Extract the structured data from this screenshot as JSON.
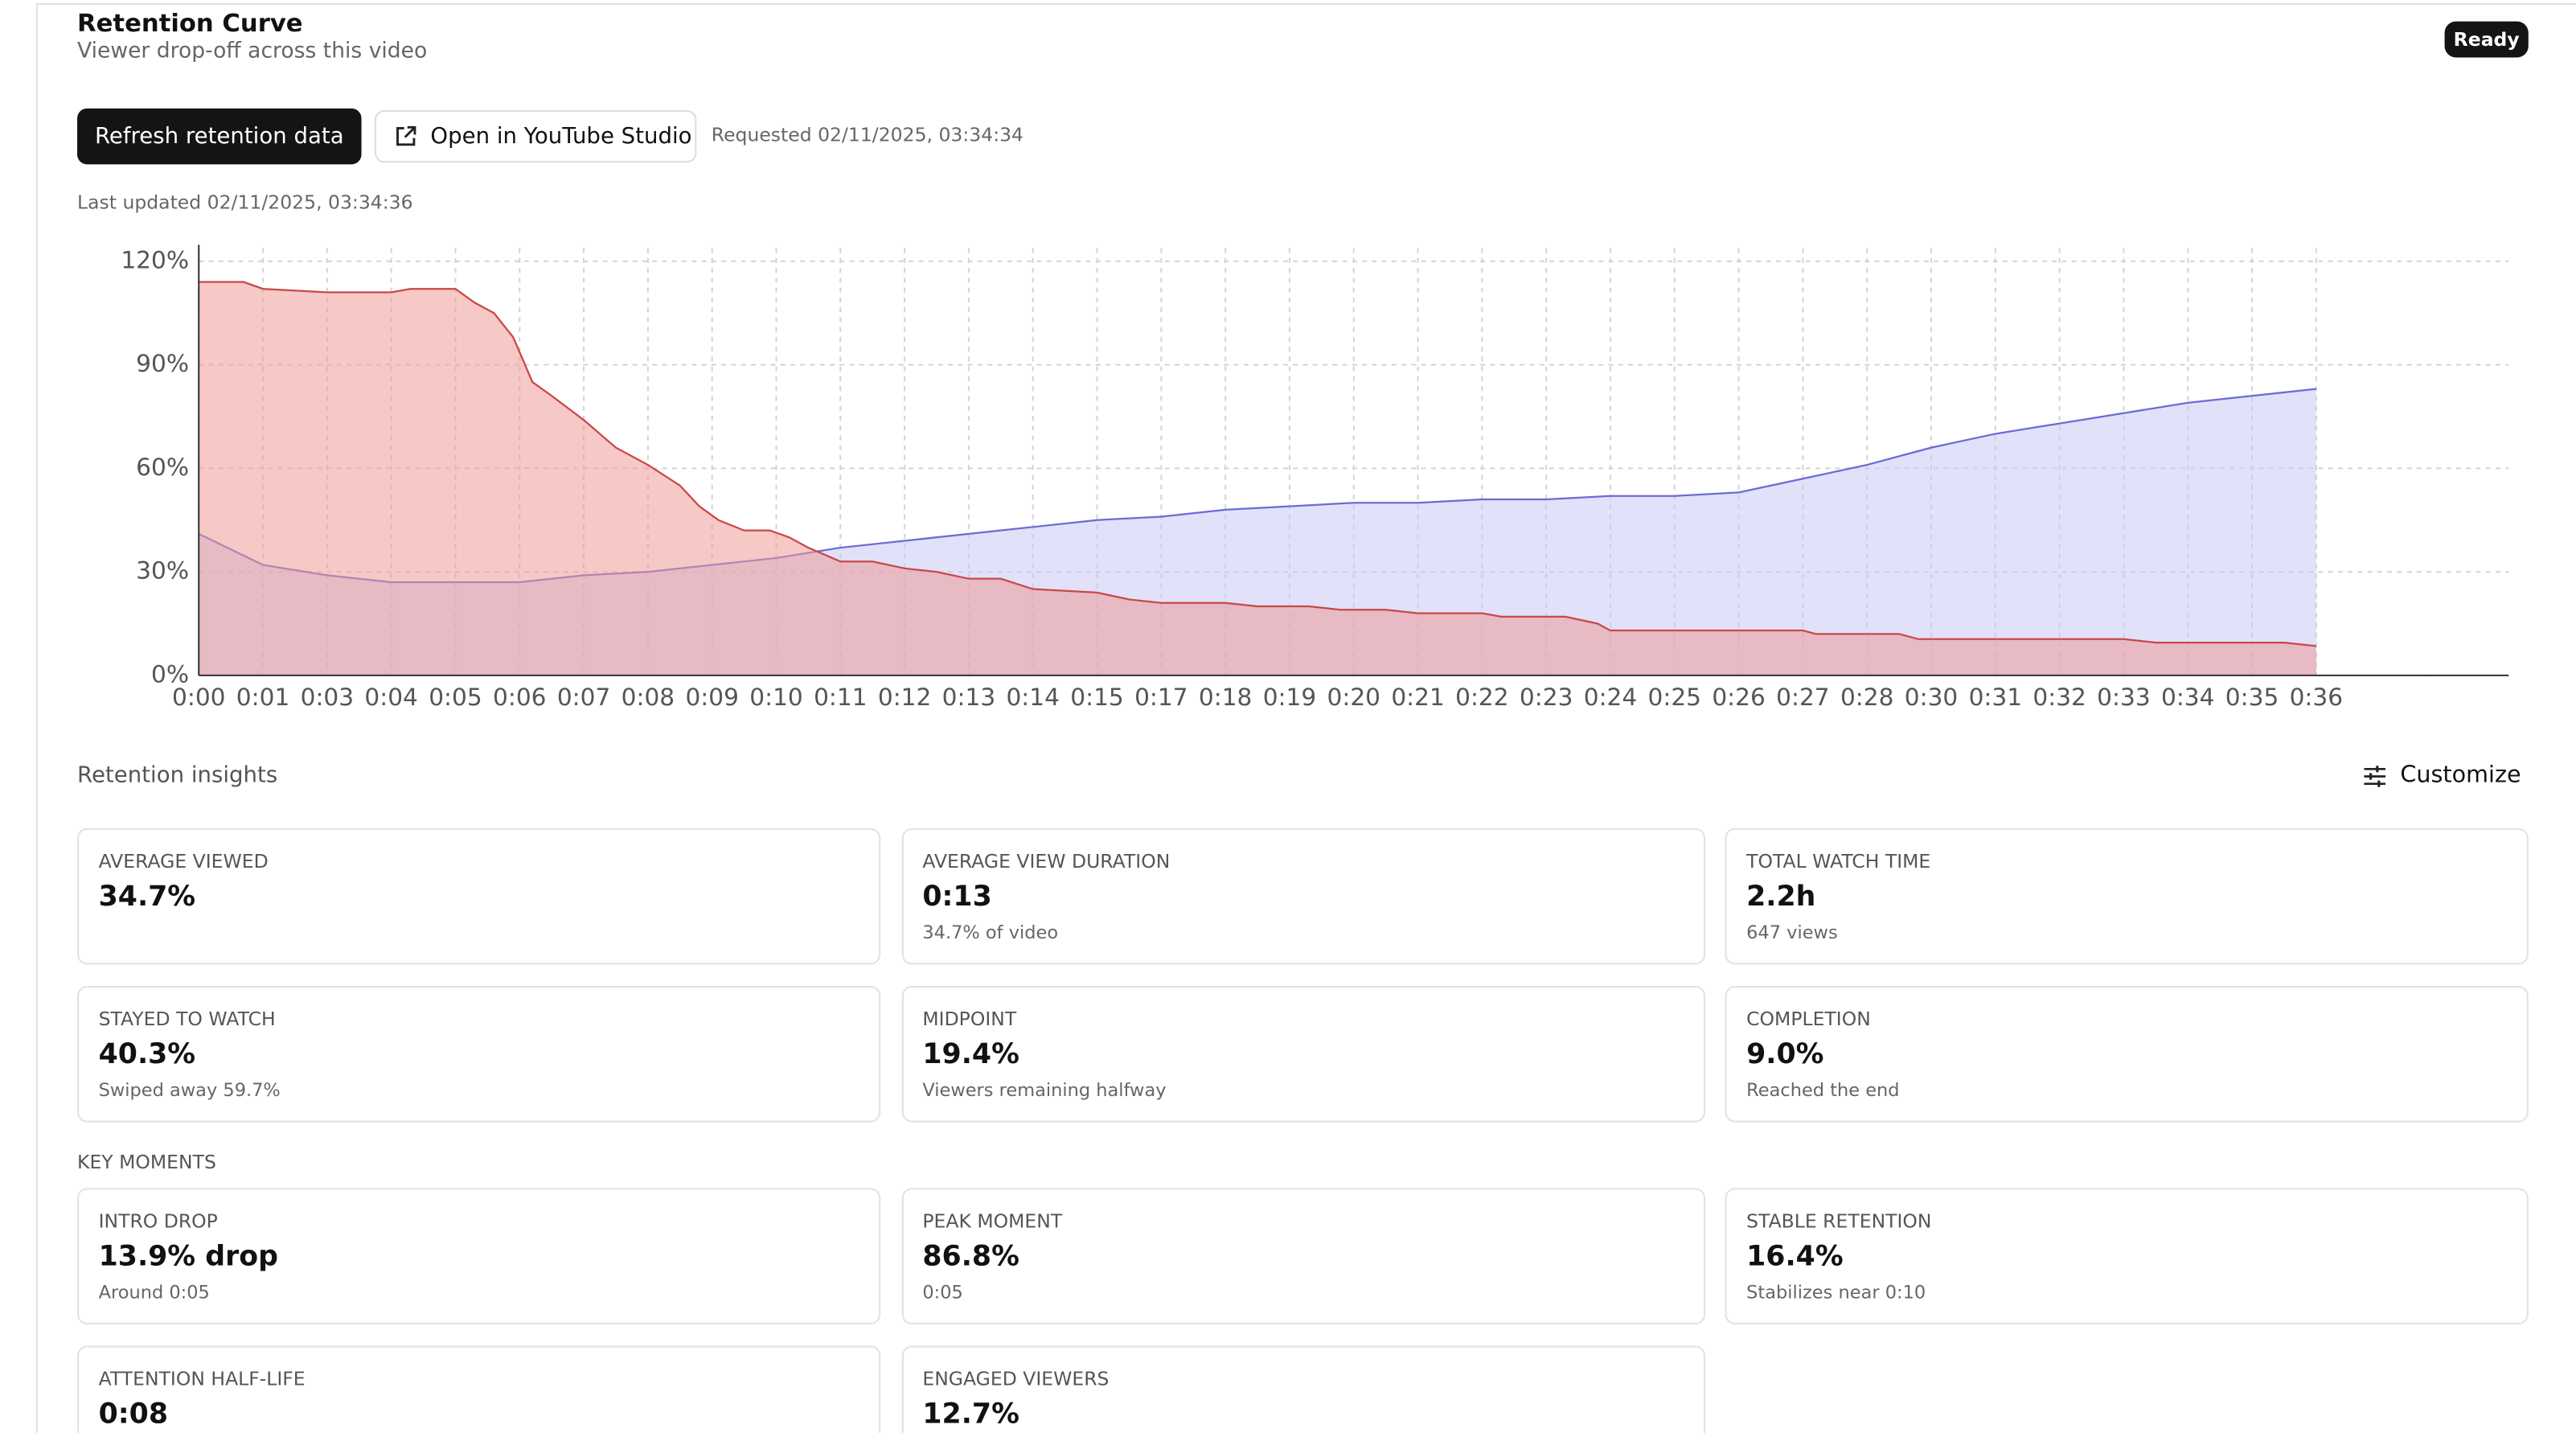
{
  "header": {
    "title": "Retention Curve",
    "subtitle": "Viewer drop-off across this video",
    "status": "Ready"
  },
  "actions": {
    "refresh": "Refresh retention data",
    "open_studio": "Open in YouTube Studio",
    "requested": "Requested 02/11/2025, 03:34:34"
  },
  "last_updated": "Last updated 02/11/2025, 03:34:36",
  "chart_data": {
    "type": "area",
    "xlim": [
      0,
      36
    ],
    "xticks": [
      {
        "value": 0,
        "label": "0:00"
      },
      {
        "value": 1,
        "label": "0:01"
      },
      {
        "value": 2,
        "label": "0:03"
      },
      {
        "value": 3,
        "label": "0:04"
      },
      {
        "value": 4,
        "label": "0:05"
      },
      {
        "value": 5,
        "label": "0:06"
      },
      {
        "value": 6,
        "label": "0:07"
      },
      {
        "value": 7,
        "label": "0:08"
      },
      {
        "value": 8,
        "label": "0:09"
      },
      {
        "value": 9,
        "label": "0:10"
      },
      {
        "value": 10,
        "label": "0:11"
      },
      {
        "value": 11,
        "label": "0:12"
      },
      {
        "value": 12,
        "label": "0:13"
      },
      {
        "value": 13,
        "label": "0:14"
      },
      {
        "value": 14,
        "label": "0:15"
      },
      {
        "value": 15,
        "label": "0:17"
      },
      {
        "value": 16,
        "label": "0:18"
      },
      {
        "value": 17,
        "label": "0:19"
      },
      {
        "value": 18,
        "label": "0:20"
      },
      {
        "value": 19,
        "label": "0:21"
      },
      {
        "value": 20,
        "label": "0:22"
      },
      {
        "value": 21,
        "label": "0:23"
      },
      {
        "value": 22,
        "label": "0:24"
      },
      {
        "value": 23,
        "label": "0:25"
      },
      {
        "value": 24,
        "label": "0:26"
      },
      {
        "value": 25,
        "label": "0:27"
      },
      {
        "value": 26,
        "label": "0:28"
      },
      {
        "value": 27,
        "label": "0:30"
      },
      {
        "value": 28,
        "label": "0:31"
      },
      {
        "value": 29,
        "label": "0:32"
      },
      {
        "value": 30,
        "label": "0:33"
      },
      {
        "value": 31,
        "label": "0:34"
      },
      {
        "value": 32,
        "label": "0:35"
      },
      {
        "value": 33,
        "label": "0:36"
      }
    ],
    "ylim": [
      0,
      120
    ],
    "yticks": [
      {
        "value": 0,
        "label": "0%"
      },
      {
        "value": 30,
        "label": "30%"
      },
      {
        "value": 60,
        "label": "60%"
      },
      {
        "value": 90,
        "label": "90%"
      },
      {
        "value": 120,
        "label": "120%"
      }
    ],
    "grid": true,
    "series": [
      {
        "color": "#6b6bd6",
        "fill": "#c9c9f4",
        "x": [
          0,
          1,
          2,
          3,
          4,
          5,
          6,
          7,
          8,
          9,
          10,
          11,
          12,
          13,
          14,
          15,
          16,
          17,
          18,
          19,
          20,
          21,
          22,
          23,
          24,
          25,
          26,
          27,
          28,
          29,
          30,
          31,
          32,
          33
        ],
        "values": [
          41,
          32,
          29,
          27,
          27,
          27,
          29,
          30,
          32,
          34,
          37,
          39,
          41,
          43,
          45,
          46,
          48,
          49,
          50,
          50,
          51,
          51,
          52,
          52,
          53,
          57,
          61,
          66,
          70,
          73,
          76,
          79,
          81,
          83
        ]
      },
      {
        "color": "#c94848",
        "fill": "#ee9a98",
        "x": [
          0,
          0.7,
          1,
          2,
          3,
          3.3,
          3.7,
          4,
          4.3,
          4.6,
          4.9,
          5.2,
          5.5,
          6,
          6.5,
          7,
          7.5,
          7.8,
          8.1,
          8.5,
          8.9,
          9.2,
          9.5,
          10,
          10.5,
          11,
          11.5,
          12,
          12.5,
          13,
          14,
          14.5,
          15,
          16,
          16.5,
          17,
          17.3,
          17.8,
          18.5,
          19,
          20,
          20.3,
          21.3,
          21.8,
          22,
          25,
          25.2,
          26.5,
          26.8,
          30,
          30.5,
          32.5,
          33
        ],
        "values": [
          114,
          114,
          112,
          111,
          111,
          112,
          112,
          112,
          108,
          105,
          98,
          85,
          81,
          74,
          66,
          61,
          55,
          49,
          45,
          42,
          42,
          40,
          37,
          33,
          33,
          31,
          30,
          28,
          28,
          25,
          24,
          22,
          21,
          21,
          20,
          20,
          20,
          19,
          19,
          18,
          18,
          17,
          17,
          15,
          13,
          13,
          12,
          12,
          10.5,
          10.5,
          9.5,
          9.5,
          8.5
        ]
      }
    ]
  },
  "insights": {
    "title": "Retention insights",
    "customize": "Customize",
    "cards": [
      {
        "label": "AVERAGE VIEWED",
        "value": "34.7%"
      },
      {
        "label": "AVERAGE VIEW DURATION",
        "value": "0:13",
        "sub": "34.7% of video"
      },
      {
        "label": "TOTAL WATCH TIME",
        "value": "2.2h",
        "sub": "647 views"
      },
      {
        "label": "STAYED TO WATCH",
        "value": "40.3%",
        "sub": "Swiped away 59.7%"
      },
      {
        "label": "MIDPOINT",
        "value": "19.4%",
        "sub": "Viewers remaining halfway"
      },
      {
        "label": "COMPLETION",
        "value": "9.0%",
        "sub": "Reached the end"
      }
    ]
  },
  "key_moments": {
    "title": "KEY MOMENTS",
    "cards": [
      {
        "label": "INTRO DROP",
        "value": "13.9% drop",
        "sub": "Around 0:05"
      },
      {
        "label": "PEAK MOMENT",
        "value": "86.8%",
        "sub": "0:05"
      },
      {
        "label": "STABLE RETENTION",
        "value": "16.4%",
        "sub": "Stabilizes near 0:10"
      },
      {
        "label": "ATTENTION HALF-LIFE",
        "value": "0:08"
      },
      {
        "label": "ENGAGED VIEWERS",
        "value": "12.7%"
      }
    ]
  }
}
